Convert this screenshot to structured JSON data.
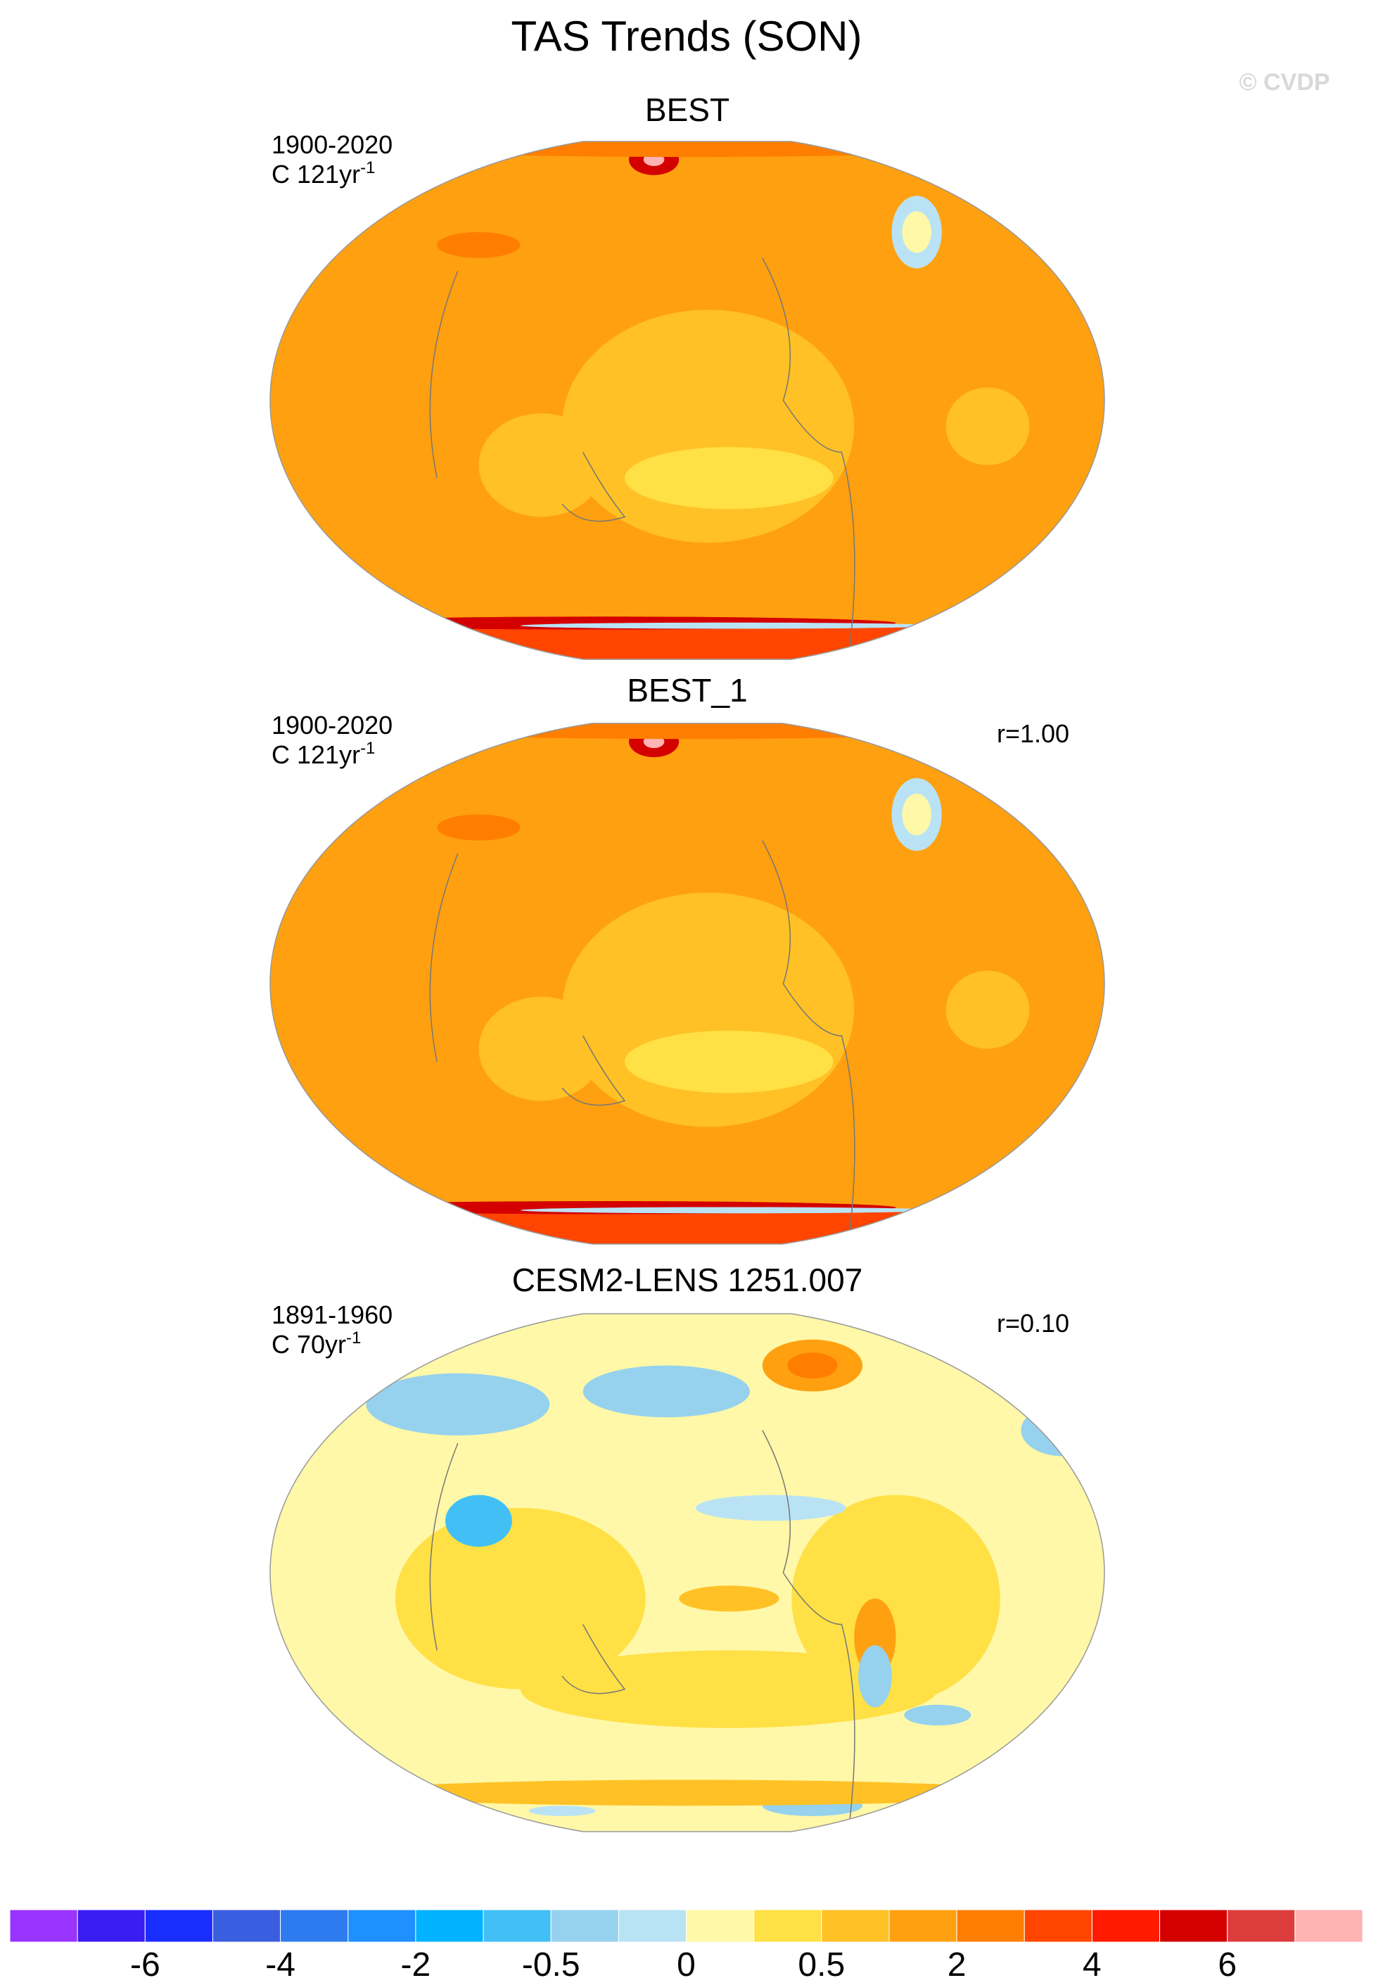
{
  "title": "TAS Trends (SON)",
  "watermark": "© CVDP",
  "panels": [
    {
      "title": "BEST",
      "period": "1900-2020",
      "units": "C 121yr",
      "units_exponent": "-1",
      "style": "warm"
    },
    {
      "title": "BEST_1",
      "period": "1900-2020",
      "units": "C 121yr",
      "units_exponent": "-1",
      "corr": "r=1.00",
      "style": "warm"
    },
    {
      "title": "CESM2-LENS 1251.007",
      "period": "1891-1960",
      "units": "C 70yr",
      "units_exponent": "-1",
      "corr": "r=0.10",
      "style": "mixed"
    }
  ],
  "colorbar": {
    "colors": [
      "#9933ff",
      "#3a1cf5",
      "#1a2dff",
      "#3a5ee0",
      "#2e7bf0",
      "#1e90ff",
      "#00b2ff",
      "#42c0f5",
      "#96d2ee",
      "#b9e3f5",
      "#fff8a8",
      "#ffe045",
      "#ffc125",
      "#ffa010",
      "#ff7e00",
      "#ff4500",
      "#ff1a00",
      "#d40000",
      "#dc3c3c",
      "#ffb3b3"
    ],
    "ticks": [
      -6,
      -4,
      -2,
      -0.5,
      0,
      0.5,
      2,
      4,
      6
    ]
  }
}
